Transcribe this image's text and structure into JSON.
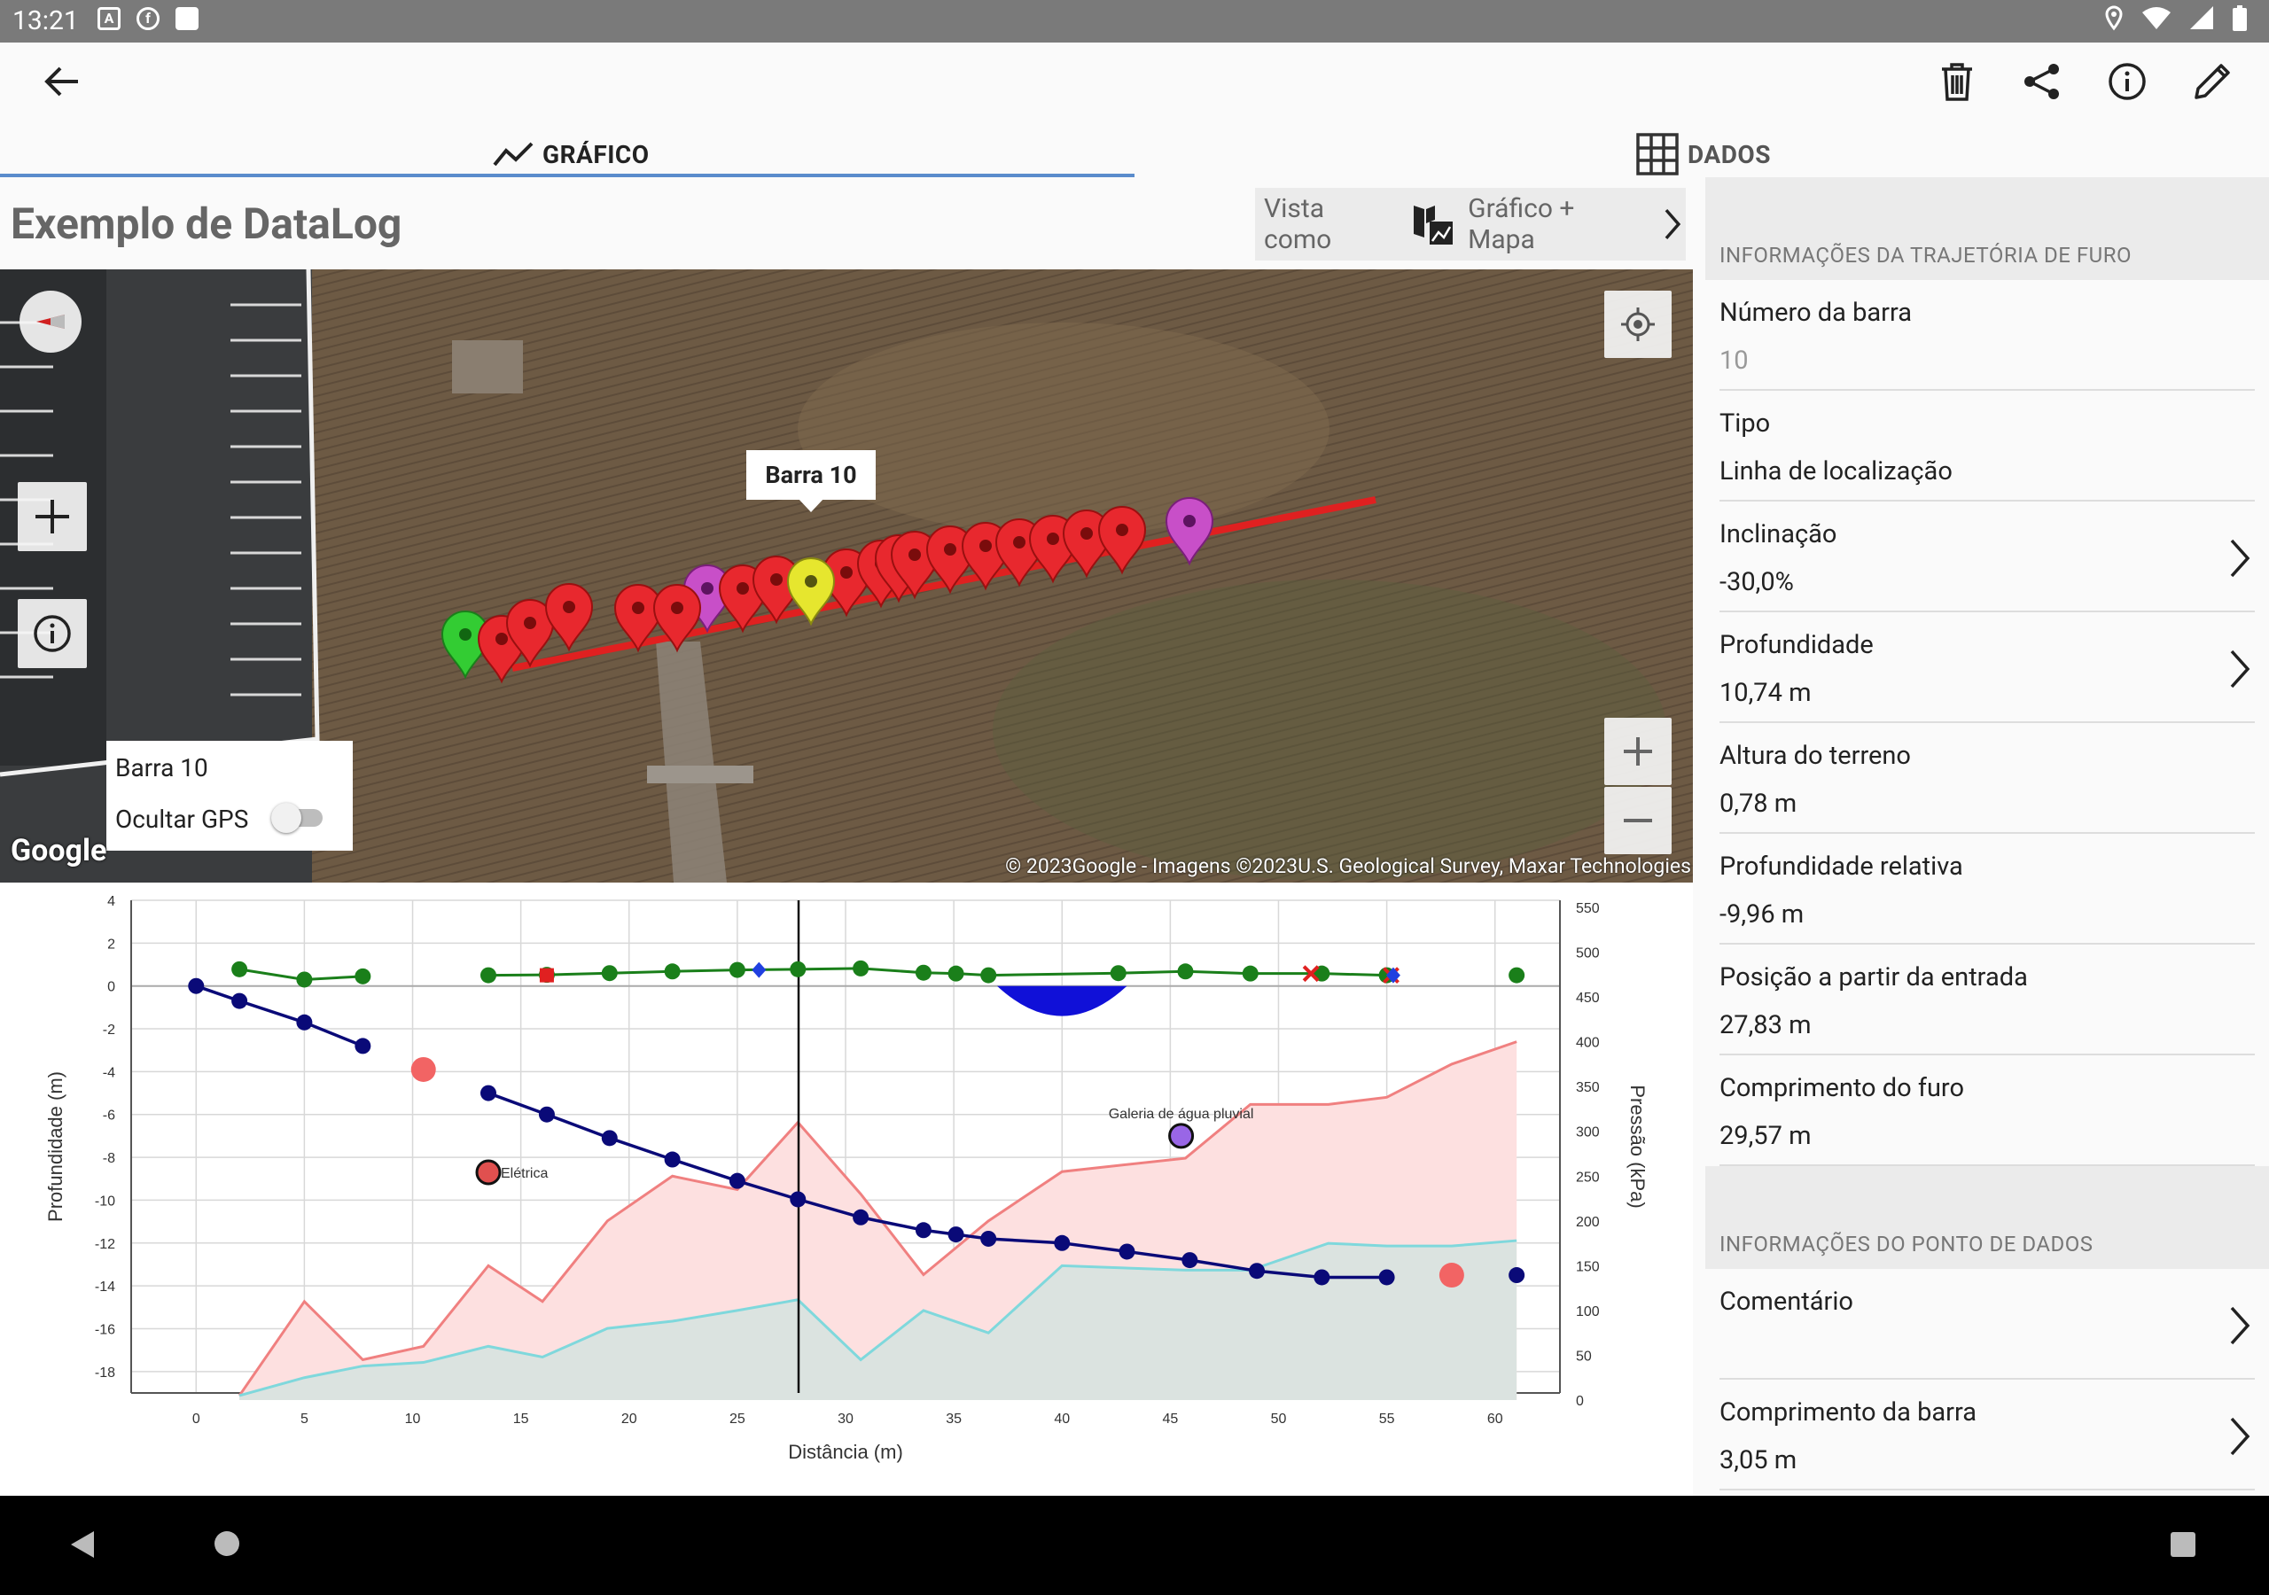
{
  "status_bar": {
    "time": "13:21",
    "left_icons": [
      "A",
      "fb",
      "sd"
    ],
    "right_icons": [
      "location-icon",
      "wifi-icon",
      "signal-icon",
      "battery-icon"
    ]
  },
  "toolbar": {
    "back": "back-arrow-icon",
    "actions": [
      "trash-icon",
      "share-icon",
      "info-icon",
      "edit-icon"
    ]
  },
  "tabs": [
    {
      "label": "GRÁFICO",
      "icon": "line-chart-icon",
      "active": true
    },
    {
      "label": "DADOS",
      "icon": "grid-icon",
      "active": false
    }
  ],
  "page_title": "Exemplo de DataLog",
  "view_as": {
    "label": "Vista como",
    "value": "Gráfico + Mapa"
  },
  "map": {
    "callout": "Barra 10",
    "overlay": {
      "rod_label": "Barra 10",
      "hide_gps_label": "Ocultar GPS",
      "hide_gps": false
    },
    "google_logo": "Google",
    "attribution": "© 2023Google - Imagens ©2023U.S. Geological Survey, Maxar Technologies",
    "marker_colors": {
      "start": "#33cc33",
      "rod": "#e8282e",
      "selected": "#e6e62e",
      "special": "#c84fc8"
    }
  },
  "chart_data": {
    "type": "line",
    "xlabel": "Distância (m)",
    "ylabel": "Profundidade (m)",
    "y2label": "Pressão (kPa)",
    "xlim": [
      -3,
      63
    ],
    "ylim": [
      -19,
      4
    ],
    "y2lim": [
      0,
      550
    ],
    "xticks": [
      0,
      5,
      10,
      15,
      20,
      25,
      30,
      35,
      40,
      45,
      50,
      55,
      60
    ],
    "yticks": [
      4,
      2,
      0,
      -2,
      -4,
      -6,
      -8,
      -10,
      -12,
      -14,
      -16,
      -18
    ],
    "y2ticks": [
      550,
      500,
      450,
      400,
      350,
      300,
      250,
      200,
      150,
      100,
      50,
      0
    ],
    "cursor_x": 27.83,
    "depth_series": {
      "color": "#0a0a78",
      "points": [
        [
          0,
          0
        ],
        [
          2,
          -0.7
        ],
        [
          5,
          -1.7
        ],
        [
          7.7,
          -2.8
        ],
        null,
        [
          13.5,
          -5
        ],
        [
          16.2,
          -6
        ],
        [
          19.1,
          -7.1
        ],
        [
          22,
          -8.1
        ],
        [
          25,
          -9.1
        ],
        [
          27.8,
          -9.96
        ],
        [
          30.7,
          -10.8
        ],
        [
          33.6,
          -11.4
        ],
        [
          35.1,
          -11.6
        ],
        [
          36.6,
          -11.8
        ],
        [
          40,
          -12
        ],
        [
          43,
          -12.4
        ],
        [
          45.9,
          -12.8
        ],
        [
          49,
          -13.3
        ],
        [
          52,
          -13.6
        ],
        [
          55,
          -13.6
        ],
        null,
        [
          61,
          -13.5
        ]
      ]
    },
    "terrain_series": {
      "color": "#1a7f1a",
      "points": [
        [
          2,
          0.78
        ],
        [
          5,
          0.3
        ],
        [
          7.7,
          0.45
        ],
        null,
        [
          13.5,
          0.5
        ],
        [
          16.2,
          0.52
        ],
        [
          19.1,
          0.6
        ],
        [
          22,
          0.68
        ],
        [
          25,
          0.75
        ],
        [
          27.8,
          0.78
        ],
        [
          30.7,
          0.82
        ],
        [
          33.6,
          0.62
        ],
        [
          35.1,
          0.58
        ],
        [
          36.6,
          0.5
        ],
        [
          42.6,
          0.6
        ],
        [
          45.7,
          0.68
        ],
        [
          48.7,
          0.58
        ],
        [
          52,
          0.58
        ],
        [
          55,
          0.5
        ],
        null,
        [
          61,
          0.5
        ]
      ]
    },
    "pressure_upper": {
      "color": "#f08080",
      "fill": "#fde0e0",
      "points": [
        [
          2,
          5
        ],
        [
          5,
          110
        ],
        [
          7.7,
          45
        ],
        [
          10.5,
          60
        ],
        [
          13.5,
          150
        ],
        [
          16,
          110
        ],
        [
          19,
          200
        ],
        [
          22,
          250
        ],
        [
          25,
          235
        ],
        [
          27.8,
          310
        ],
        [
          30.7,
          230
        ],
        [
          33.6,
          140
        ],
        [
          36.6,
          200
        ],
        [
          40,
          255
        ],
        [
          45.7,
          270
        ],
        [
          48.7,
          330
        ],
        [
          52.3,
          330
        ],
        [
          55,
          338
        ],
        [
          58,
          375
        ],
        [
          61,
          400
        ]
      ]
    },
    "pressure_lower": {
      "color": "#7fd8dc",
      "fill": "#dbe3e0",
      "points": [
        [
          2,
          5
        ],
        [
          5,
          25
        ],
        [
          7.7,
          38
        ],
        [
          10.5,
          42
        ],
        [
          13.5,
          60
        ],
        [
          16,
          48
        ],
        [
          19,
          80
        ],
        [
          22,
          88
        ],
        [
          25,
          100
        ],
        [
          27.8,
          112
        ],
        [
          30.7,
          45
        ],
        [
          33.6,
          100
        ],
        [
          36.6,
          75
        ],
        [
          40,
          150
        ],
        [
          45.7,
          145
        ],
        [
          48.7,
          145
        ],
        [
          52.3,
          175
        ],
        [
          55,
          172
        ],
        [
          58,
          172
        ],
        [
          61,
          178
        ]
      ]
    },
    "utility": {
      "color": "#1010d8",
      "start": 37,
      "end": 43,
      "depth": -1.4
    },
    "annotations": [
      {
        "label": "Elétrica",
        "x": 13.5,
        "y": -8.7,
        "color": "#e0504f",
        "outline": true
      },
      {
        "label": "Galeria de água pluvial",
        "x": 45.5,
        "y": -7,
        "color": "#9966e6",
        "outline": true
      }
    ],
    "points_pink": [
      [
        10.5,
        -3.9
      ],
      [
        58,
        -13.5
      ]
    ],
    "markers": [
      {
        "x": 16.2,
        "y": 0.5,
        "shape": "square",
        "color": "#e02020"
      },
      {
        "x": 26,
        "y": 0.75,
        "shape": "diamond",
        "color": "#2040e0"
      },
      {
        "x": 51.5,
        "y": 0.58,
        "shape": "cross",
        "color": "#e02020"
      },
      {
        "x": 55.2,
        "y": 0.5,
        "shape": "cross",
        "color": "#e02020"
      },
      {
        "x": 55.3,
        "y": 0.5,
        "shape": "diamond",
        "color": "#2040e0"
      }
    ]
  },
  "info_panel": {
    "section1": "INFORMAÇÕES DA TRAJETÓRIA DE FURO",
    "items1": [
      {
        "label": "Número da barra",
        "value": "10",
        "muted": true,
        "chevron": false
      },
      {
        "label": "Tipo",
        "value": "Linha de localização",
        "chevron": false
      },
      {
        "label": "Inclinação",
        "value": "-30,0%",
        "chevron": true
      },
      {
        "label": "Profundidade",
        "value": "10,74 m",
        "chevron": true
      },
      {
        "label": "Altura do terreno",
        "value": "0,78 m",
        "chevron": false
      },
      {
        "label": "Profundidade relativa",
        "value": "-9,96 m",
        "chevron": false
      },
      {
        "label": "Posição a partir da entrada",
        "value": "27,83 m",
        "chevron": false
      },
      {
        "label": "Comprimento do furo",
        "value": "29,57 m",
        "chevron": false
      }
    ],
    "section2": "INFORMAÇÕES DO PONTO DE DADOS",
    "items2": [
      {
        "label": "Comentário",
        "value": "",
        "chevron": true
      },
      {
        "label": "Comprimento da barra",
        "value": "3,05 m",
        "chevron": true
      }
    ]
  },
  "navbar": [
    "back-triangle-icon",
    "home-circle-icon",
    "recents-square-icon"
  ]
}
